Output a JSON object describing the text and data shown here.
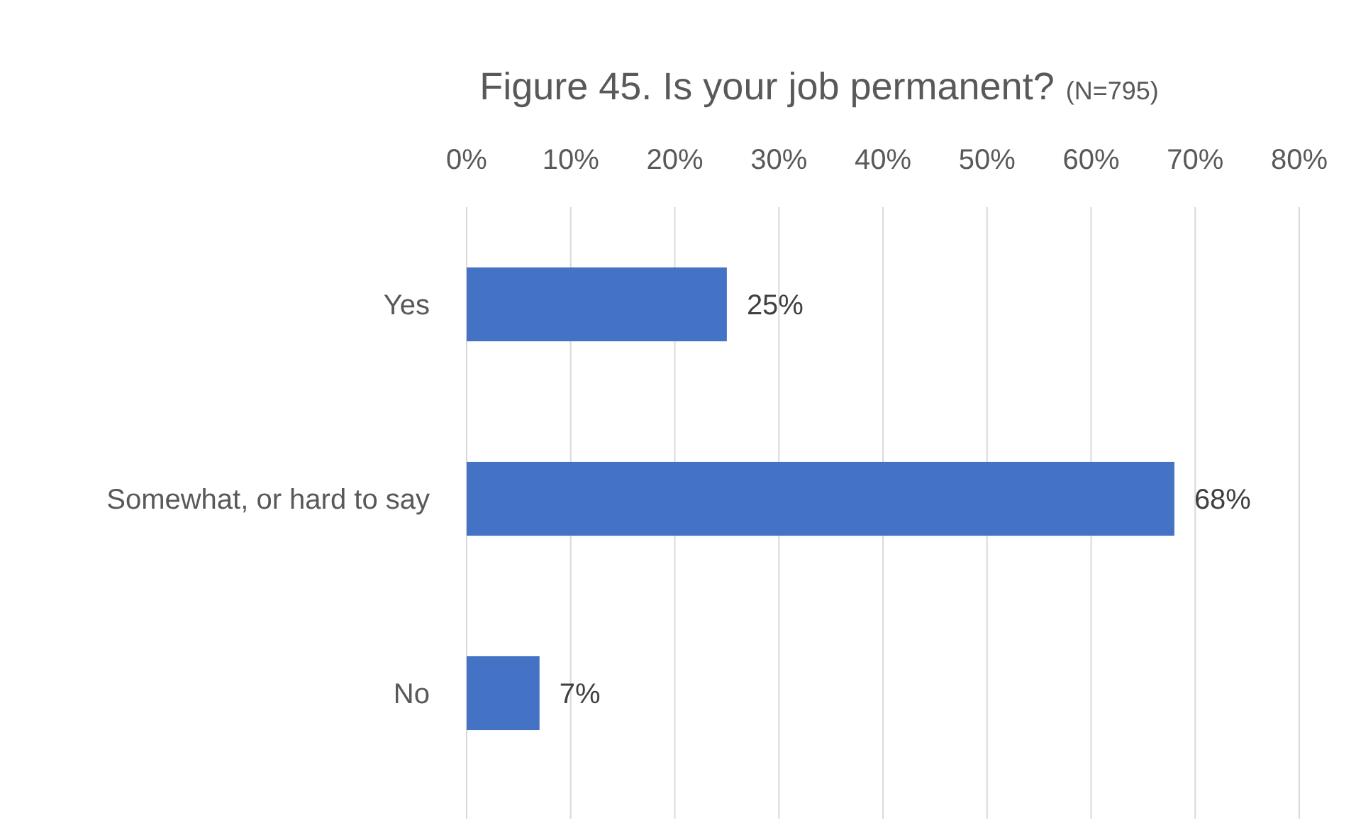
{
  "chart_data": {
    "type": "bar",
    "orientation": "horizontal",
    "title": "Figure 45. Is your job permanent?",
    "subtitle": "(N=795)",
    "categories": [
      "Yes",
      "Somewhat, or hard to say",
      "No"
    ],
    "values": [
      25,
      68,
      7
    ],
    "color": "#4472c4",
    "value_labels": [
      "25%",
      "68%",
      "7%"
    ],
    "xlim": [
      0,
      80
    ],
    "xticks": [
      {
        "value": 0,
        "label": "0%"
      },
      {
        "value": 10,
        "label": "10%"
      },
      {
        "value": 20,
        "label": "20%"
      },
      {
        "value": 30,
        "label": "30%"
      },
      {
        "value": 40,
        "label": "40%"
      },
      {
        "value": 50,
        "label": "50%"
      },
      {
        "value": 60,
        "label": "60%"
      },
      {
        "value": 70,
        "label": "70%"
      },
      {
        "value": 80,
        "label": "80%"
      }
    ],
    "grid": "x"
  }
}
